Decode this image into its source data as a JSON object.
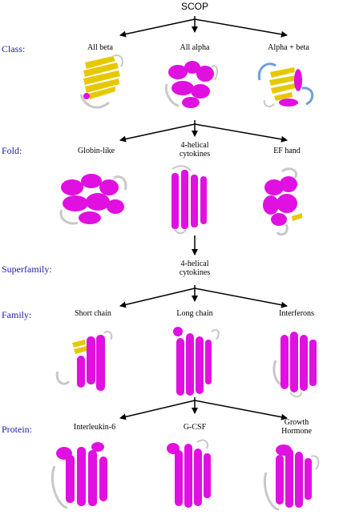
{
  "title": "SCOP",
  "levels": {
    "class": "Class:",
    "fold": "Fold:",
    "superfamily": "Superfamily:",
    "family": "Family:",
    "protein": "Protein:"
  },
  "nodes": {
    "class_all_beta": "All beta",
    "class_all_alpha": "All alpha",
    "class_alpha_beta": "Alpha + beta",
    "fold_globin": "Globin-like",
    "fold_cytokines_1": "4-helical",
    "fold_cytokines_2": "cytokines",
    "fold_ef_hand": "EF hand",
    "superfamily_1": "4-helical",
    "superfamily_2": "cytokines",
    "family_short": "Short chain",
    "family_long": "Long chain",
    "family_interferons": "Interferons",
    "protein_il6": "Interleukin-6",
    "protein_gcsf": "G-CSF",
    "protein_gh_1": "Growth",
    "protein_gh_2": "Hormone"
  },
  "colors": {
    "level_label": "#1a1ab0",
    "helix": "#e010e0",
    "strand": "#e6c800",
    "loop": "#c8c8c8",
    "loop_blue": "#6aa0e0"
  }
}
